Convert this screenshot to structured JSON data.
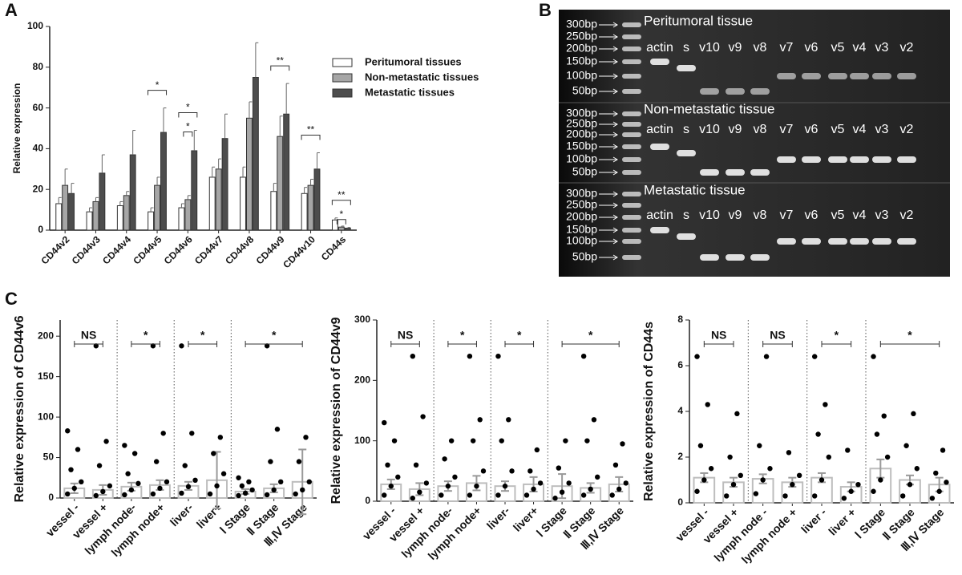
{
  "panel_labels": [
    "A",
    "B",
    "C"
  ],
  "chart_data": [
    {
      "type": "grouped-bar",
      "ylabel": "Relative expression",
      "categories": [
        "CD44v2",
        "CD44v3",
        "CD44v4",
        "CD44v5",
        "CD44v6",
        "CD44v7",
        "CD44v8",
        "CD44v9",
        "CD44v10",
        "CD44s"
      ],
      "series": [
        {
          "name": "Peritumoral tissues",
          "color": "#ffffff",
          "values": [
            13,
            9,
            12,
            9,
            11,
            26,
            26,
            19,
            18,
            5
          ],
          "errors": [
            3,
            2,
            2,
            2,
            2,
            5,
            5,
            4,
            3,
            1
          ]
        },
        {
          "name": "Non-metastatic tissues",
          "color": "#a6a6a6",
          "values": [
            22,
            14,
            17,
            22,
            15,
            30,
            55,
            46,
            22,
            1.5
          ],
          "errors": [
            8,
            2,
            2,
            4,
            2,
            5,
            8,
            10,
            3,
            0.5
          ]
        },
        {
          "name": "Metastatic tissues",
          "color": "#4d4d4d",
          "values": [
            18,
            28,
            37,
            48,
            39,
            45,
            75,
            57,
            30,
            1
          ],
          "errors": [
            5,
            9,
            12,
            12,
            10,
            12,
            17,
            15,
            8,
            0.3
          ]
        }
      ],
      "ylim": [
        0,
        100
      ],
      "yticks": [
        0,
        20,
        40,
        60,
        80,
        100
      ],
      "legend": "right",
      "annotations": [
        {
          "category": "CD44v5",
          "label": "*"
        },
        {
          "category": "CD44v6",
          "label": "*"
        },
        {
          "category": "CD44v6",
          "label": "*"
        },
        {
          "category": "CD44v9",
          "label": "**"
        },
        {
          "category": "CD44v10",
          "label": "**"
        },
        {
          "category": "CD44s",
          "label": "**"
        },
        {
          "category": "CD44s",
          "label": "*"
        }
      ]
    },
    {
      "type": "dot-bar",
      "ylabel": "Relative expression of CD44v6",
      "color": "#bdbdbd",
      "categories": [
        "vessel -",
        "vessel +",
        "lymph node-",
        "lymph node+",
        "liver-",
        "liver+",
        "Ⅰ Stage",
        "Ⅱ Stage",
        "Ⅲ,Ⅳ Stage"
      ],
      "values": [
        12,
        10,
        14,
        16,
        15,
        22,
        8,
        12,
        20
      ],
      "errors": [
        6,
        6,
        5,
        6,
        5,
        35,
        3,
        5,
        40
      ],
      "points": [
        [
          5,
          12,
          20,
          35,
          60,
          83
        ],
        [
          3,
          8,
          15,
          40,
          70,
          188
        ],
        [
          4,
          10,
          18,
          30,
          55,
          65
        ],
        [
          5,
          12,
          20,
          45,
          80,
          188
        ],
        [
          6,
          14,
          22,
          40,
          80,
          188
        ],
        [
          5,
          15,
          30,
          55,
          75
        ],
        [
          3,
          6,
          10,
          15,
          20,
          25
        ],
        [
          4,
          10,
          20,
          45,
          85,
          188
        ],
        [
          5,
          10,
          20,
          45,
          75
        ]
      ],
      "ylim": [
        0,
        220
      ],
      "yticks": [
        0,
        50,
        100,
        150,
        200
      ],
      "brackets": [
        {
          "span": [
            "vessel -",
            "vessel +"
          ],
          "label": "NS"
        },
        {
          "span": [
            "lymph node-",
            "lymph node+"
          ],
          "label": "*"
        },
        {
          "span": [
            "liver-",
            "liver+"
          ],
          "label": "*"
        },
        {
          "span": [
            "Ⅰ Stage",
            "Ⅲ,Ⅳ Stage"
          ],
          "label": "*"
        }
      ]
    },
    {
      "type": "dot-bar",
      "ylabel": "Relative expression of CD44v9",
      "color": "#bdbdbd",
      "categories": [
        "vessel -",
        "vessel +",
        "lymph node-",
        "lymph node+",
        "liver-",
        "liver+",
        "Ⅰ Stage",
        "Ⅱ Stage",
        "Ⅲ,Ⅳ Stage"
      ],
      "values": [
        28,
        20,
        25,
        30,
        25,
        28,
        25,
        22,
        28
      ],
      "errors": [
        8,
        10,
        8,
        12,
        8,
        12,
        20,
        8,
        12
      ],
      "points": [
        [
          10,
          25,
          40,
          60,
          100,
          130
        ],
        [
          5,
          15,
          30,
          60,
          140,
          240
        ],
        [
          10,
          25,
          40,
          70,
          100
        ],
        [
          10,
          25,
          50,
          100,
          135,
          240
        ],
        [
          10,
          25,
          50,
          100,
          135,
          240
        ],
        [
          10,
          20,
          30,
          50,
          85
        ],
        [
          5,
          15,
          30,
          55,
          100
        ],
        [
          10,
          20,
          40,
          100,
          135,
          240
        ],
        [
          10,
          20,
          30,
          60,
          95
        ]
      ],
      "ylim": [
        0,
        300
      ],
      "yticks": [
        0,
        100,
        200,
        300
      ],
      "brackets": [
        {
          "span": [
            "vessel -",
            "vessel +"
          ],
          "label": "NS"
        },
        {
          "span": [
            "lymph node-",
            "lymph node+"
          ],
          "label": "*"
        },
        {
          "span": [
            "liver-",
            "liver+"
          ],
          "label": "*"
        },
        {
          "span": [
            "Ⅰ Stage",
            "Ⅲ,Ⅳ Stage"
          ],
          "label": "*"
        }
      ]
    },
    {
      "type": "dot-bar",
      "ylabel": "Relative expression of CD44s",
      "color": "#bdbdbd",
      "categories": [
        "vessel -",
        "vessel +",
        "lymph node -",
        "lymph node +",
        "liver -",
        "liver +",
        "Ⅰ Stage",
        "Ⅱ Stage",
        "Ⅲ,Ⅳ Stage"
      ],
      "values": [
        1.1,
        0.9,
        1.05,
        0.9,
        1.1,
        0.7,
        1.5,
        1.0,
        0.8
      ],
      "errors": [
        0.2,
        0.2,
        0.2,
        0.2,
        0.2,
        0.2,
        0.4,
        0.2,
        0.3
      ],
      "points": [
        [
          0.5,
          1,
          1.5,
          2.5,
          4.3,
          6.4
        ],
        [
          0.3,
          0.8,
          1.2,
          2,
          3.9
        ],
        [
          0.4,
          1,
          1.5,
          2.5,
          6.4
        ],
        [
          0.3,
          0.8,
          1.2,
          2.2
        ],
        [
          0.3,
          1,
          2,
          3,
          4.3,
          6.4
        ],
        [
          0.2,
          0.5,
          0.8,
          2.3
        ],
        [
          0.5,
          1,
          2,
          3,
          3.8,
          6.4
        ],
        [
          0.3,
          0.8,
          1.5,
          2.5,
          3.9
        ],
        [
          0.2,
          0.5,
          0.9,
          1.3,
          2.3
        ]
      ],
      "ylim": [
        0,
        8
      ],
      "yticks": [
        0,
        2,
        4,
        6,
        8
      ],
      "brackets": [
        {
          "span": [
            "vessel -",
            "vessel +"
          ],
          "label": "NS"
        },
        {
          "span": [
            "lymph node -",
            "lymph node +"
          ],
          "label": "NS"
        },
        {
          "span": [
            "liver -",
            "liver +"
          ],
          "label": "*"
        },
        {
          "span": [
            "Ⅰ Stage",
            "Ⅲ,Ⅳ Stage"
          ],
          "label": "*"
        }
      ]
    }
  ],
  "gel": {
    "markers": [
      "300bp",
      "250bp",
      "200bp",
      "150bp",
      "100bp",
      "50bp"
    ],
    "lanes": [
      "actin",
      "s",
      "v10",
      "v9",
      "v8",
      "v7",
      "v6",
      "v5",
      "v4",
      "v3",
      "v2"
    ],
    "sections": [
      "Peritumoral tissue",
      "Non-metastatic tissue",
      "Metastatic tissue"
    ]
  }
}
